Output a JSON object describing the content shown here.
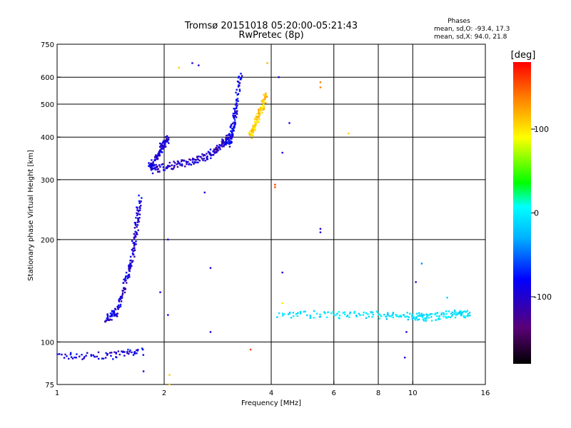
{
  "chart_data": {
    "type": "scatter",
    "title": "Tromsø 20151018 05:20:00-05:21:43",
    "subtitle": "RwPretec (8p)",
    "xlabel": "Frequency [MHz]",
    "ylabel": "Stationary phase Virtual Height [km]",
    "x_scale": "log",
    "y_scale": "log",
    "xlim": [
      1,
      16
    ],
    "ylim": [
      75,
      750
    ],
    "x_ticks": [
      1,
      2,
      4,
      6,
      8,
      10,
      16
    ],
    "x_tick_labels": [
      "1",
      "2",
      "4",
      "6",
      "8",
      "10",
      "16"
    ],
    "x_grid": [
      2,
      4,
      6,
      8,
      10
    ],
    "y_ticks": [
      75,
      100,
      200,
      300,
      400,
      500,
      600,
      750
    ],
    "y_tick_labels": [
      "75",
      "100",
      "200",
      "300",
      "400",
      "500",
      "600",
      "750"
    ],
    "y_grid": [
      100,
      200,
      300,
      400,
      500,
      600
    ],
    "grid": true,
    "phases": {
      "title": "Phases",
      "line_o": "mean, sd,O: -93.4, 17.3",
      "line_x": "mean, sd,X:  94.0, 21.8"
    },
    "colorbar": {
      "label": "[deg]",
      "range": [
        -180,
        180
      ],
      "ticks": [
        100,
        0,
        -100
      ],
      "tick_labels": [
        "100",
        "0",
        "-100"
      ],
      "colormap": "rainbow (black-purple-blue-cyan-green-yellow-red)"
    },
    "series": [
      {
        "segments": [
          {
            "x": [
              1.0,
              1.4,
              1.75
            ],
            "y": [
              91,
              91,
              94
            ],
            "phase": -110
          },
          {
            "x": [
              1.38,
              1.46,
              1.55,
              1.62,
              1.67,
              1.71
            ],
            "y": [
              117,
              122,
              145,
              175,
              215,
              265
            ],
            "phase": -110
          },
          {
            "x": [
              1.82,
              1.9,
              1.98,
              2.05
            ],
            "y": [
              325,
              345,
              380,
              395
            ],
            "phase": -110
          },
          {
            "x": [
              1.85,
              2.1,
              2.4,
              2.7,
              2.9,
              3.05
            ],
            "y": [
              320,
              330,
              340,
              355,
              380,
              400
            ],
            "phase": -115
          },
          {
            "x": [
              3.05,
              3.1,
              3.18,
              3.28
            ],
            "y": [
              380,
              420,
              480,
              620
            ],
            "phase": -105
          },
          {
            "x": [
              3.5,
              3.6,
              3.75,
              3.88
            ],
            "y": [
              400,
              440,
              480,
              540
            ],
            "phase": 110
          },
          {
            "x": [
              4.2,
              6.0,
              8.0,
              10.0,
              11.0,
              13.0,
              14.5
            ],
            "y": [
              121,
              120,
              120,
              119,
              118,
              121,
              121
            ],
            "phase": -20
          }
        ]
      }
    ],
    "scattered_points": [
      {
        "x": 2.5,
        "y": 650,
        "phase": -110
      },
      {
        "x": 2.4,
        "y": 660,
        "phase": -110
      },
      {
        "x": 5.5,
        "y": 580,
        "phase": 140
      },
      {
        "x": 5.5,
        "y": 560,
        "phase": 140
      },
      {
        "x": 5.5,
        "y": 215,
        "phase": -110
      },
      {
        "x": 5.5,
        "y": 210,
        "phase": -110
      },
      {
        "x": 4.2,
        "y": 600,
        "phase": -110
      },
      {
        "x": 3.9,
        "y": 660,
        "phase": 120
      },
      {
        "x": 2.05,
        "y": 200,
        "phase": -110
      },
      {
        "x": 2.05,
        "y": 120,
        "phase": -110
      },
      {
        "x": 1.95,
        "y": 140,
        "phase": -110
      },
      {
        "x": 2.6,
        "y": 275,
        "phase": -110
      },
      {
        "x": 2.7,
        "y": 165,
        "phase": -110
      },
      {
        "x": 2.7,
        "y": 107,
        "phase": -110
      },
      {
        "x": 4.1,
        "y": 285,
        "phase": 160
      },
      {
        "x": 4.1,
        "y": 290,
        "phase": 160
      },
      {
        "x": 4.3,
        "y": 160,
        "phase": -110
      },
      {
        "x": 4.3,
        "y": 130,
        "phase": 100
      },
      {
        "x": 3.5,
        "y": 95,
        "phase": 160
      },
      {
        "x": 4.5,
        "y": 440,
        "phase": -110
      },
      {
        "x": 4.3,
        "y": 360,
        "phase": -110
      },
      {
        "x": 6.6,
        "y": 410,
        "phase": 110
      },
      {
        "x": 10.6,
        "y": 170,
        "phase": -60
      },
      {
        "x": 10.2,
        "y": 150,
        "phase": -110
      },
      {
        "x": 12.5,
        "y": 135,
        "phase": -30
      },
      {
        "x": 9.6,
        "y": 107,
        "phase": -110
      },
      {
        "x": 9.5,
        "y": 90,
        "phase": -110
      },
      {
        "x": 2.07,
        "y": 80,
        "phase": 110
      },
      {
        "x": 2.07,
        "y": 75,
        "phase": 110
      },
      {
        "x": 2.2,
        "y": 640,
        "phase": 110
      },
      {
        "x": 1.75,
        "y": 82,
        "phase": -110
      }
    ]
  }
}
